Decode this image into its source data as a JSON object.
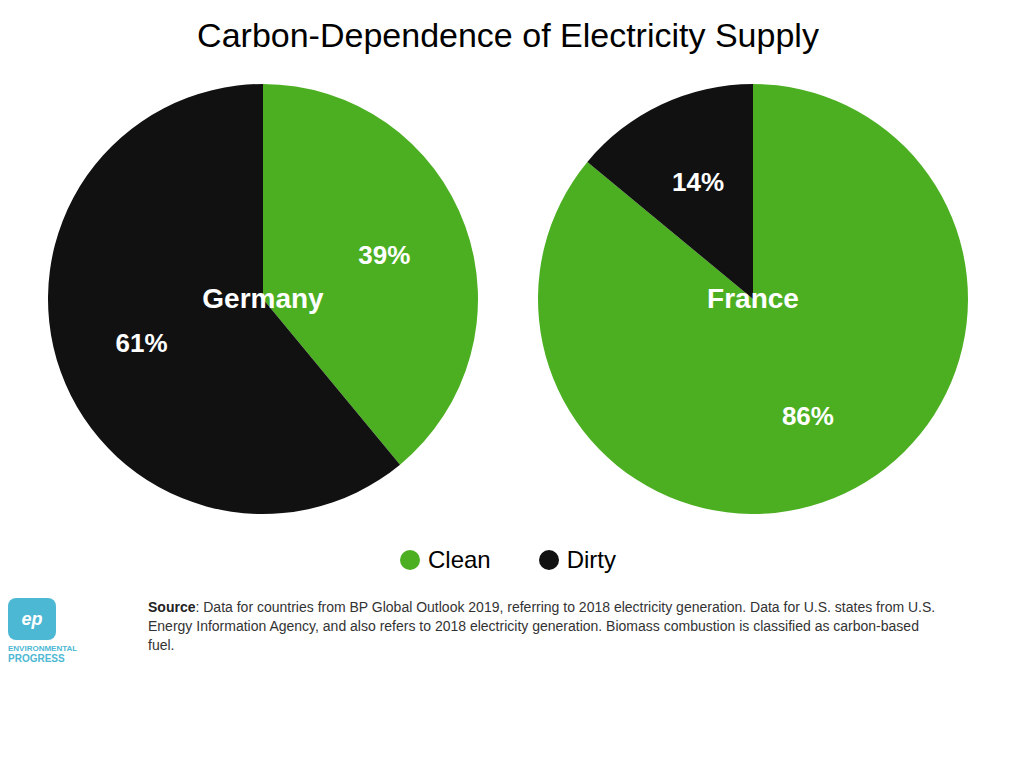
{
  "title": "Carbon-Dependence of Electricity Supply",
  "legend": "bottom",
  "annotations": [
    {
      "text": "Source: Data for countries from BP Global Outlook 2019, referring to 2018 electricity generation. Data for U.S. states from U.S. Energy Information Agency, and also refers to 2018 electricity generation. Biomass combustion is classified as carbon-based fuel."
    },
    {
      "text": "ep",
      "color": "#4db8d4"
    },
    {
      "text": "ENVIRONMENTAL",
      "color": "#4db8d4"
    },
    {
      "text": "PROGRESS",
      "color": "#4db8d4"
    }
  ],
  "chart_data": [
    {
      "type": "pie",
      "title": "Germany",
      "categories": [
        "Clean",
        "Dirty"
      ],
      "values": [
        39,
        61
      ],
      "value_labels": [
        "39%",
        "61%"
      ],
      "data_labels": true,
      "colors": [
        "#4caf22",
        "#111111"
      ]
    },
    {
      "type": "pie",
      "title": "France",
      "categories": [
        "Clean",
        "Dirty"
      ],
      "values": [
        86,
        14
      ],
      "value_labels": [
        "86%",
        "14%"
      ],
      "data_labels": true,
      "colors": [
        "#4caf22",
        "#111111"
      ]
    }
  ]
}
